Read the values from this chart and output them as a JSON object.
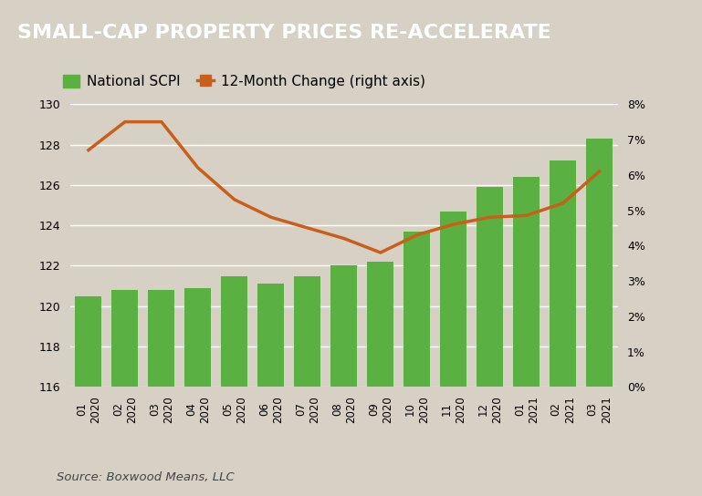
{
  "title": "SMALL-CAP PROPERTY PRICES RE-ACCELERATE",
  "title_bg_color": "#636363",
  "title_text_color": "#ffffff",
  "bg_color": "#d6d1c4",
  "chart_bg_color": "#d6d1c4",
  "source_text": "Source: Boxwood Means, LLC",
  "categories": [
    "2020 01",
    "2020 02",
    "2020 03",
    "2020 04",
    "2020 05",
    "2020 06",
    "2020 07",
    "2020 08",
    "2020 09",
    "2020 10",
    "2020 11",
    "2020 12",
    "2021 01",
    "2021 02",
    "2021 03"
  ],
  "bar_values": [
    120.5,
    120.8,
    120.8,
    120.9,
    121.5,
    121.1,
    121.5,
    122.0,
    122.2,
    123.7,
    124.7,
    125.9,
    126.4,
    127.2,
    128.3
  ],
  "line_values": [
    6.7,
    7.5,
    7.5,
    6.2,
    5.3,
    4.8,
    4.5,
    4.2,
    3.8,
    4.3,
    4.6,
    4.8,
    4.85,
    5.2,
    6.1
  ],
  "bar_color": "#5ab040",
  "line_color": "#c95f1a",
  "ylim_left": [
    116,
    130
  ],
  "ylim_right": [
    0,
    8
  ],
  "yticks_left": [
    116,
    118,
    120,
    122,
    124,
    126,
    128,
    130
  ],
  "yticks_right": [
    0,
    1,
    2,
    3,
    4,
    5,
    6,
    7,
    8
  ],
  "legend_label_bar": "National SCPI",
  "legend_label_line": "12-Month Change (right axis)",
  "legend_fontsize": 11,
  "title_fontsize": 16
}
